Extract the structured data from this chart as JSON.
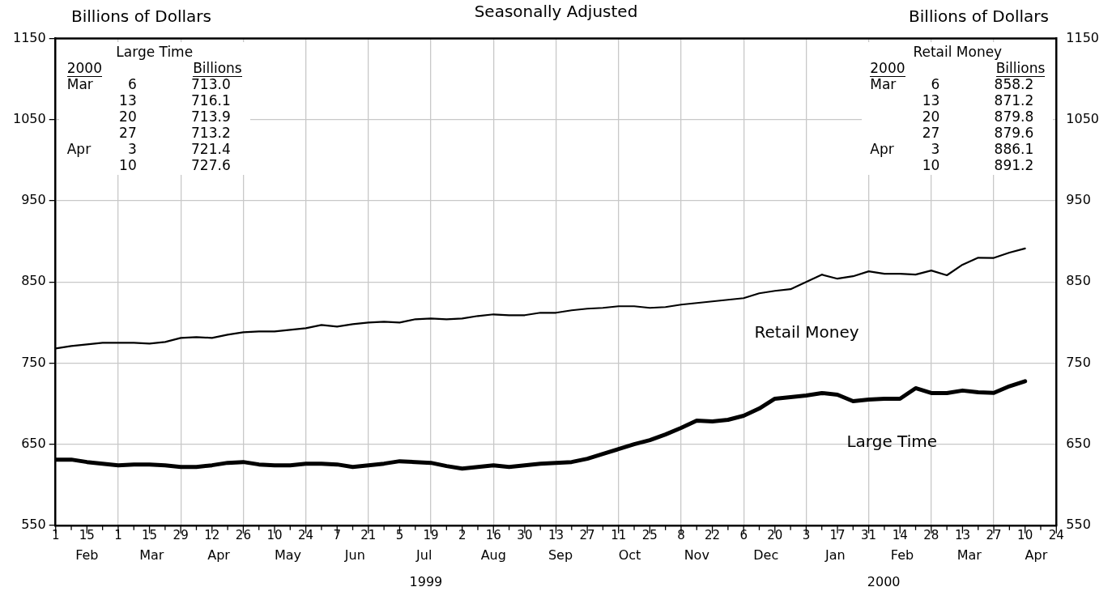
{
  "chart_data": {
    "type": "line",
    "title": "Seasonally Adjusted",
    "ylabel": "Billions of Dollars",
    "y2label": "Billions of Dollars",
    "x": [
      "1999-02-01",
      "1999-02-08",
      "1999-02-15",
      "1999-02-22",
      "1999-03-01",
      "1999-03-08",
      "1999-03-15",
      "1999-03-22",
      "1999-03-29",
      "1999-04-05",
      "1999-04-12",
      "1999-04-19",
      "1999-04-26",
      "1999-05-03",
      "1999-05-10",
      "1999-05-17",
      "1999-05-24",
      "1999-05-31",
      "1999-06-07",
      "1999-06-14",
      "1999-06-21",
      "1999-06-28",
      "1999-07-05",
      "1999-07-12",
      "1999-07-19",
      "1999-07-26",
      "1999-08-02",
      "1999-08-09",
      "1999-08-16",
      "1999-08-23",
      "1999-08-30",
      "1999-09-06",
      "1999-09-13",
      "1999-09-20",
      "1999-09-27",
      "1999-10-04",
      "1999-10-11",
      "1999-10-18",
      "1999-10-25",
      "1999-11-01",
      "1999-11-08",
      "1999-11-15",
      "1999-11-22",
      "1999-11-29",
      "1999-12-06",
      "1999-12-13",
      "1999-12-20",
      "1999-12-27",
      "2000-01-03",
      "2000-01-10",
      "2000-01-17",
      "2000-01-24",
      "2000-01-31",
      "2000-02-07",
      "2000-02-14",
      "2000-02-21",
      "2000-02-28",
      "2000-03-06",
      "2000-03-13",
      "2000-03-20",
      "2000-03-27",
      "2000-04-03",
      "2000-04-10"
    ],
    "series": [
      {
        "name": "Large Time",
        "color": "#000000",
        "values": [
          631,
          631,
          628,
          626,
          624,
          625,
          625,
          624,
          622,
          622,
          624,
          627,
          628,
          625,
          624,
          624,
          626,
          626,
          625,
          622,
          624,
          626,
          629,
          628,
          627,
          623,
          620,
          622,
          624,
          622,
          624,
          626,
          627,
          628,
          632,
          638,
          644,
          650,
          655,
          662,
          670,
          679,
          678,
          680,
          685,
          694,
          706,
          708,
          710,
          713,
          711,
          703,
          705,
          706,
          706,
          719,
          713,
          713.0,
          716.1,
          713.9,
          713.2,
          721.4,
          727.6
        ]
      },
      {
        "name": "Retail Money",
        "color": "#000000",
        "values": [
          768,
          771,
          773,
          775,
          775,
          775,
          774,
          776,
          781,
          782,
          781,
          785,
          788,
          789,
          789,
          791,
          793,
          797,
          795,
          798,
          800,
          801,
          800,
          804,
          805,
          804,
          805,
          808,
          810,
          809,
          809,
          812,
          812,
          815,
          817,
          818,
          820,
          820,
          818,
          819,
          822,
          824,
          826,
          828,
          830,
          836,
          839,
          841,
          850,
          859,
          854,
          857,
          863,
          860,
          860,
          859,
          864,
          858.2,
          871.2,
          879.8,
          879.6,
          886.1,
          891.2
        ]
      }
    ],
    "xlim": [
      "1999-02-01",
      "2000-04-24"
    ],
    "xticks": [
      {
        "value": "1999-02-01",
        "label": "1"
      },
      {
        "value": "1999-02-08",
        "label": null
      },
      {
        "value": "1999-02-15",
        "label": "15"
      },
      {
        "value": "1999-02-22",
        "label": null
      },
      {
        "value": "1999-03-01",
        "label": "1"
      },
      {
        "value": "1999-03-08",
        "label": null
      },
      {
        "value": "1999-03-15",
        "label": "15"
      },
      {
        "value": "1999-03-22",
        "label": null
      },
      {
        "value": "1999-03-29",
        "label": "29"
      },
      {
        "value": "1999-04-05",
        "label": null
      },
      {
        "value": "1999-04-12",
        "label": "12"
      },
      {
        "value": "1999-04-19",
        "label": null
      },
      {
        "value": "1999-04-26",
        "label": "26"
      },
      {
        "value": "1999-05-03",
        "label": null
      },
      {
        "value": "1999-05-10",
        "label": "10"
      },
      {
        "value": "1999-05-17",
        "label": null
      },
      {
        "value": "1999-05-24",
        "label": "24"
      },
      {
        "value": "1999-05-31",
        "label": null
      },
      {
        "value": "1999-06-07",
        "label": "7"
      },
      {
        "value": "1999-06-14",
        "label": null
      },
      {
        "value": "1999-06-21",
        "label": "21"
      },
      {
        "value": "1999-06-28",
        "label": null
      },
      {
        "value": "1999-07-05",
        "label": "5"
      },
      {
        "value": "1999-07-12",
        "label": null
      },
      {
        "value": "1999-07-19",
        "label": "19"
      },
      {
        "value": "1999-07-26",
        "label": null
      },
      {
        "value": "1999-08-02",
        "label": "2"
      },
      {
        "value": "1999-08-09",
        "label": null
      },
      {
        "value": "1999-08-16",
        "label": "16"
      },
      {
        "value": "1999-08-23",
        "label": null
      },
      {
        "value": "1999-08-30",
        "label": "30"
      },
      {
        "value": "1999-09-06",
        "label": null
      },
      {
        "value": "1999-09-13",
        "label": "13"
      },
      {
        "value": "1999-09-20",
        "label": null
      },
      {
        "value": "1999-09-27",
        "label": "27"
      },
      {
        "value": "1999-10-04",
        "label": null
      },
      {
        "value": "1999-10-11",
        "label": "11"
      },
      {
        "value": "1999-10-18",
        "label": null
      },
      {
        "value": "1999-10-25",
        "label": "25"
      },
      {
        "value": "1999-11-01",
        "label": null
      },
      {
        "value": "1999-11-08",
        "label": "8"
      },
      {
        "value": "1999-11-15",
        "label": null
      },
      {
        "value": "1999-11-22",
        "label": "22"
      },
      {
        "value": "1999-11-29",
        "label": null
      },
      {
        "value": "1999-12-06",
        "label": "6"
      },
      {
        "value": "1999-12-13",
        "label": null
      },
      {
        "value": "1999-12-20",
        "label": "20"
      },
      {
        "value": "1999-12-27",
        "label": null
      },
      {
        "value": "2000-01-03",
        "label": "3"
      },
      {
        "value": "2000-01-10",
        "label": null
      },
      {
        "value": "2000-01-17",
        "label": "17"
      },
      {
        "value": "2000-01-24",
        "label": null
      },
      {
        "value": "2000-01-31",
        "label": "31"
      },
      {
        "value": "2000-02-07",
        "label": null
      },
      {
        "value": "2000-02-14",
        "label": "14"
      },
      {
        "value": "2000-02-21",
        "label": null
      },
      {
        "value": "2000-02-28",
        "label": "28"
      },
      {
        "value": "2000-03-06",
        "label": null
      },
      {
        "value": "2000-03-13",
        "label": "13"
      },
      {
        "value": "2000-03-20",
        "label": null
      },
      {
        "value": "2000-03-27",
        "label": "27"
      },
      {
        "value": "2000-04-03",
        "label": null
      },
      {
        "value": "2000-04-10",
        "label": "10"
      },
      {
        "value": "2000-04-17",
        "label": null
      },
      {
        "value": "2000-04-24",
        "label": "24"
      }
    ],
    "x2lim": [
      "1999-02-01",
      "2000-04-24"
    ],
    "x2ticks": [
      {
        "value": "1999-02-15",
        "label": "Feb"
      },
      {
        "value": "1999-03-16",
        "label": "Mar"
      },
      {
        "value": "1999-04-15",
        "label": "Apr"
      },
      {
        "value": "1999-05-16",
        "label": "May"
      },
      {
        "value": "1999-06-15",
        "label": "Jun"
      },
      {
        "value": "1999-07-16",
        "label": "Jul"
      },
      {
        "value": "1999-08-16",
        "label": "Aug"
      },
      {
        "value": "1999-09-15",
        "label": "Sep"
      },
      {
        "value": "1999-10-16",
        "label": "Oct"
      },
      {
        "value": "1999-11-15",
        "label": "Nov"
      },
      {
        "value": "1999-12-16",
        "label": "Dec"
      },
      {
        "value": "2000-01-16",
        "label": "Jan"
      },
      {
        "value": "2000-02-15",
        "label": "Feb"
      },
      {
        "value": "2000-03-16",
        "label": "Mar"
      },
      {
        "value": "2000-04-15",
        "label": "Apr"
      }
    ],
    "ylim": [
      550,
      1150
    ],
    "yticks": [
      550,
      650,
      750,
      850,
      950,
      1050,
      1150
    ],
    "y2lim": [
      550,
      1150
    ],
    "y2ticks": [
      550,
      650,
      750,
      850,
      950,
      1050,
      1150
    ],
    "grid": true,
    "annotations": [
      "Large Time\n2000\tBillions\nMar\t6\t713.0\n\t13\t716.1\n\t20\t713.9\n\t27\t713.2\nApr\t3\t721.4\n\t10\t727.6",
      "Retail Money\n2000\tBillions\nMar\t6\t858.2\n\t13\t871.2\n\t20\t879.8\n\t27\t879.6\nApr\t3\t886.1\n\t10\t891.2",
      "1999",
      "2000"
    ]
  }
}
